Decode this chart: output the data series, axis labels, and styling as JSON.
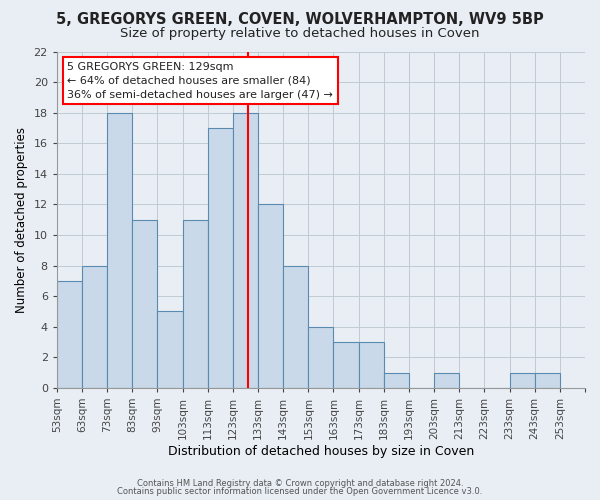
{
  "title1": "5, GREGORYS GREEN, COVEN, WOLVERHAMPTON, WV9 5BP",
  "title2": "Size of property relative to detached houses in Coven",
  "xlabel": "Distribution of detached houses by size in Coven",
  "ylabel": "Number of detached properties",
  "bin_edges": [
    53,
    63,
    73,
    83,
    93,
    103,
    113,
    123,
    133,
    143,
    153,
    163,
    173,
    183,
    193,
    203,
    213,
    223,
    233,
    243,
    253
  ],
  "counts": [
    7,
    8,
    18,
    11,
    5,
    11,
    17,
    18,
    12,
    8,
    4,
    3,
    3,
    1,
    0,
    1,
    0,
    0,
    1,
    1
  ],
  "bar_color": "#c9d9e9",
  "bar_edge_color": "#5a8ab0",
  "red_line_x": 129,
  "ylim": [
    0,
    22
  ],
  "yticks": [
    0,
    2,
    4,
    6,
    8,
    10,
    12,
    14,
    16,
    18,
    20,
    22
  ],
  "annotation_title": "5 GREGORYS GREEN: 129sqm",
  "annotation_line1": "← 64% of detached houses are smaller (84)",
  "annotation_line2": "36% of semi-detached houses are larger (47) →",
  "footer1": "Contains HM Land Registry data © Crown copyright and database right 2024.",
  "footer2": "Contains public sector information licensed under the Open Government Licence v3.0.",
  "background_color": "#e8eef4",
  "plot_bg_color": "#e8eef4",
  "grid_color": "#c0cad4",
  "title1_fontsize": 10.5,
  "title2_fontsize": 9.5,
  "xlabel_fontsize": 9,
  "ylabel_fontsize": 8.5,
  "tick_labels": [
    "53sqm",
    "63sqm",
    "73sqm",
    "83sqm",
    "93sqm",
    "103sqm",
    "113sqm",
    "123sqm",
    "133sqm",
    "143sqm",
    "153sqm",
    "163sqm",
    "173sqm",
    "183sqm",
    "193sqm",
    "203sqm",
    "213sqm",
    "223sqm",
    "233sqm",
    "243sqm",
    "253sqm"
  ]
}
